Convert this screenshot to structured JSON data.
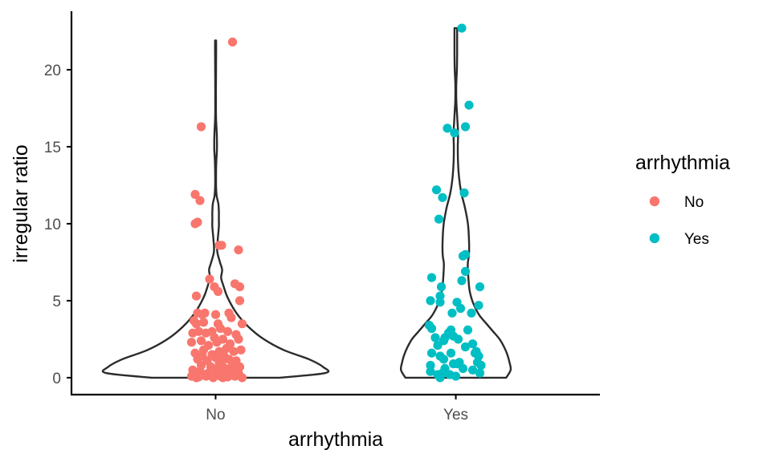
{
  "chart_data": {
    "type": "violin",
    "xlabel": "arrhythmia",
    "ylabel": "irregular ratio",
    "categories": [
      "No",
      "Yes"
    ],
    "ylim": [
      -1.1,
      23.8
    ],
    "yticks": [
      0,
      5,
      10,
      15,
      20
    ],
    "grid": false,
    "legend": {
      "title": "arrhythmia",
      "position": "right",
      "entries": [
        {
          "label": "No",
          "color": "#F8766D"
        },
        {
          "label": "Yes",
          "color": "#00BFC4"
        }
      ]
    },
    "series": [
      {
        "name": "No",
        "color": "#F8766D",
        "violin": {
          "y": [
            0,
            0.3,
            0.7,
            1.2,
            1.8,
            2.5,
            3.3,
            4.2,
            5.2,
            6.0,
            6.5,
            7.0,
            7.5,
            8.2,
            9.0,
            9.8,
            10.3,
            10.8,
            11.3,
            11.8,
            12.5,
            13.2,
            14.0,
            14.8,
            15.5,
            16.0,
            16.5,
            17.2,
            18.0,
            19.0,
            20.0,
            21.0,
            21.9
          ],
          "width": [
            0.58,
            1.0,
            0.98,
            0.85,
            0.62,
            0.44,
            0.3,
            0.19,
            0.11,
            0.07,
            0.05,
            0.06,
            0.04,
            0.015,
            0.02,
            0.03,
            0.03,
            0.03,
            0.025,
            0.01,
            0.004,
            0.004,
            0.006,
            0.012,
            0.012,
            0.01,
            0.006,
            0.003,
            0.003,
            0.003,
            0.004,
            0.005,
            0.005
          ]
        },
        "points": [
          [
            0.14,
            21.8
          ],
          [
            -0.12,
            16.3
          ],
          [
            -0.17,
            11.9
          ],
          [
            -0.13,
            11.5
          ],
          [
            -0.15,
            10.1
          ],
          [
            -0.17,
            10.0
          ],
          [
            0.03,
            8.6
          ],
          [
            0.05,
            8.6
          ],
          [
            0.19,
            8.3
          ],
          [
            -0.05,
            6.4
          ],
          [
            -0.01,
            5.9
          ],
          [
            0.16,
            6.1
          ],
          [
            0.2,
            5.9
          ],
          [
            -0.16,
            5.3
          ],
          [
            0.02,
            5.6
          ],
          [
            0.2,
            5.0
          ],
          [
            0.22,
            3.5
          ],
          [
            -0.15,
            4.2
          ],
          [
            -0.11,
            4.1
          ],
          [
            -0.09,
            4.2
          ],
          [
            0.0,
            4.1
          ],
          [
            0.11,
            4.2
          ],
          [
            -0.18,
            3.7
          ],
          [
            -0.16,
            3.5
          ],
          [
            -0.1,
            3.6
          ],
          [
            0.02,
            3.5
          ],
          [
            0.13,
            3.9
          ],
          [
            -0.19,
            2.9
          ],
          [
            -0.14,
            3.0
          ],
          [
            -0.08,
            2.9
          ],
          [
            -0.03,
            3.0
          ],
          [
            0.04,
            3.2
          ],
          [
            0.1,
            3.0
          ],
          [
            0.17,
            2.8
          ],
          [
            -0.2,
            2.3
          ],
          [
            -0.12,
            2.4
          ],
          [
            -0.06,
            2.1
          ],
          [
            0.01,
            2.3
          ],
          [
            0.06,
            2.5
          ],
          [
            0.12,
            2.2
          ],
          [
            0.19,
            2.5
          ],
          [
            -0.17,
            1.6
          ],
          [
            -0.1,
            1.8
          ],
          [
            -0.03,
            1.5
          ],
          [
            0.03,
            1.7
          ],
          [
            0.09,
            1.9
          ],
          [
            0.15,
            1.7
          ],
          [
            0.21,
            1.8
          ],
          [
            -0.15,
            1.2
          ],
          [
            -0.07,
            1.1
          ],
          [
            0.0,
            1.3
          ],
          [
            0.05,
            1.0
          ],
          [
            0.11,
            1.2
          ],
          [
            0.17,
            1.1
          ],
          [
            -0.12,
            0.8
          ],
          [
            -0.04,
            0.7
          ],
          [
            0.03,
            0.9
          ],
          [
            0.08,
            0.6
          ],
          [
            0.14,
            0.8
          ],
          [
            0.2,
            0.7
          ],
          [
            -0.19,
            0.5
          ],
          [
            -0.13,
            0.4
          ],
          [
            -0.06,
            0.3
          ],
          [
            0.01,
            0.5
          ],
          [
            0.07,
            0.2
          ],
          [
            0.13,
            0.4
          ],
          [
            0.19,
            0.3
          ],
          [
            -0.2,
            0.1
          ],
          [
            -0.14,
            0.05
          ],
          [
            -0.08,
            0.1
          ],
          [
            -0.02,
            0.0
          ],
          [
            0.04,
            0.1
          ],
          [
            0.1,
            0.05
          ],
          [
            0.16,
            0.1
          ],
          [
            0.22,
            0.0
          ],
          [
            -0.16,
            0.0
          ],
          [
            -0.05,
            0.15
          ],
          [
            0.06,
            0.0
          ],
          [
            -0.11,
            1.4
          ],
          [
            0.07,
            1.4
          ],
          [
            -0.01,
            2.6
          ],
          [
            0.15,
            0.3
          ],
          [
            -0.09,
            0.2
          ]
        ]
      },
      {
        "name": "Yes",
        "color": "#00BFC4",
        "violin": {
          "y": [
            0,
            0.5,
            1.0,
            1.5,
            2.0,
            2.5,
            3.0,
            3.5,
            4.0,
            4.5,
            5.0,
            5.5,
            6.0,
            7.0,
            7.5,
            8.0,
            9.0,
            10.0,
            11.0,
            12.0,
            13.0,
            14.0,
            15.0,
            15.5,
            16.0,
            17.0,
            18.0,
            19.0,
            20.0,
            21.0,
            22.0,
            22.7
          ],
          "width": [
            0.46,
            0.5,
            0.49,
            0.47,
            0.44,
            0.4,
            0.34,
            0.28,
            0.22,
            0.18,
            0.15,
            0.13,
            0.12,
            0.11,
            0.11,
            0.12,
            0.12,
            0.11,
            0.085,
            0.05,
            0.03,
            0.02,
            0.018,
            0.02,
            0.02,
            0.012,
            0.005,
            0.004,
            0.01,
            0.012,
            0.012,
            0.012
          ]
        },
        "points": [
          [
            0.05,
            22.7
          ],
          [
            0.11,
            17.7
          ],
          [
            -0.07,
            16.2
          ],
          [
            -0.01,
            15.9
          ],
          [
            0.08,
            16.3
          ],
          [
            -0.16,
            12.2
          ],
          [
            -0.11,
            11.7
          ],
          [
            0.07,
            12.0
          ],
          [
            -0.14,
            10.3
          ],
          [
            0.06,
            7.9
          ],
          [
            0.08,
            8.0
          ],
          [
            0.08,
            6.9
          ],
          [
            -0.2,
            6.5
          ],
          [
            0.05,
            6.3
          ],
          [
            0.2,
            5.9
          ],
          [
            -0.12,
            5.9
          ],
          [
            -0.13,
            5.3
          ],
          [
            -0.21,
            5.0
          ],
          [
            -0.13,
            4.9
          ],
          [
            0.01,
            4.9
          ],
          [
            0.04,
            4.5
          ],
          [
            0.19,
            4.7
          ],
          [
            -0.03,
            4.2
          ],
          [
            0.13,
            4.2
          ],
          [
            -0.22,
            3.4
          ],
          [
            -0.2,
            3.2
          ],
          [
            0.1,
            3.1
          ],
          [
            -0.04,
            3.1
          ],
          [
            -0.06,
            2.9
          ],
          [
            -0.17,
            2.6
          ],
          [
            -0.09,
            2.6
          ],
          [
            -0.02,
            2.7
          ],
          [
            0.02,
            2.5
          ],
          [
            -0.1,
            2.4
          ],
          [
            0.14,
            2.2
          ],
          [
            -0.15,
            2.1
          ],
          [
            0.08,
            2.0
          ],
          [
            0.16,
            1.6
          ],
          [
            0.17,
            1.7
          ],
          [
            -0.2,
            1.6
          ],
          [
            -0.04,
            1.6
          ],
          [
            -0.13,
            1.4
          ],
          [
            0.19,
            1.4
          ],
          [
            -0.1,
            1.2
          ],
          [
            0.03,
            1.0
          ],
          [
            0.18,
            1.0
          ],
          [
            -0.21,
            0.8
          ],
          [
            -0.02,
            0.9
          ],
          [
            0.01,
            0.9
          ],
          [
            0.21,
            0.8
          ],
          [
            -0.09,
            0.6
          ],
          [
            0.06,
            0.6
          ],
          [
            -0.21,
            0.4
          ],
          [
            -0.11,
            0.3
          ],
          [
            0.2,
            0.3
          ],
          [
            -0.15,
            0.2
          ],
          [
            -0.05,
            0.2
          ],
          [
            -0.13,
            0.0
          ],
          [
            0.0,
            0.1
          ],
          [
            0.14,
            0.5
          ]
        ]
      }
    ]
  }
}
